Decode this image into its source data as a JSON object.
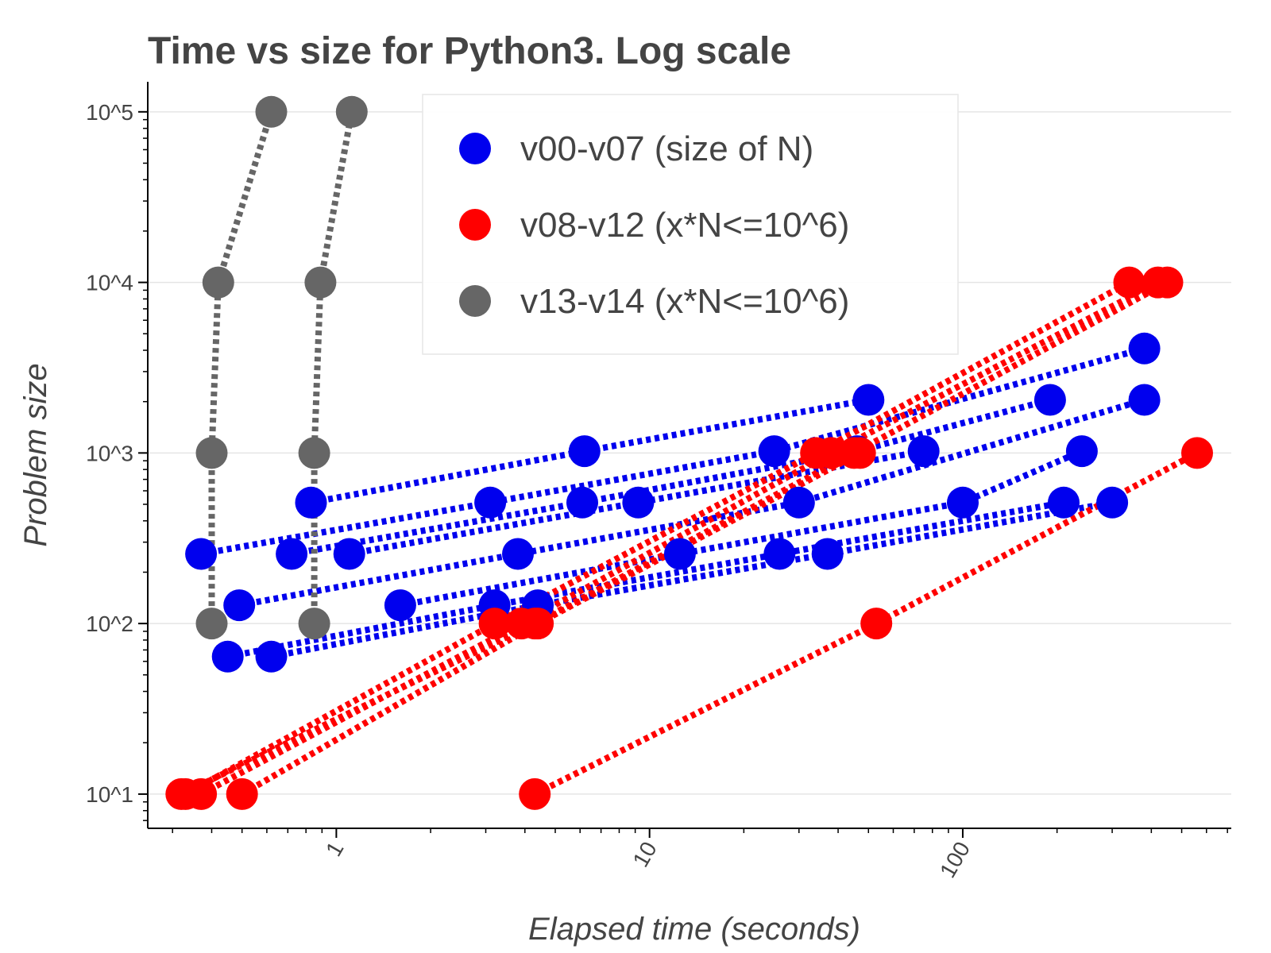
{
  "chart_data": {
    "type": "scatter",
    "title": "Time vs size for Python3. Log scale",
    "xlabel": "Elapsed time (seconds)",
    "ylabel": "Problem size",
    "x_scale": "log",
    "y_scale": "log",
    "xlim": [
      0.25,
      720
    ],
    "ylim": [
      6.3,
      150000
    ],
    "x_ticks": [
      {
        "value": 1,
        "label": "1"
      },
      {
        "value": 10,
        "label": "10"
      },
      {
        "value": 100,
        "label": "100"
      }
    ],
    "y_ticks": [
      {
        "value": 10,
        "label": "10^1"
      },
      {
        "value": 100,
        "label": "10^2"
      },
      {
        "value": 1000,
        "label": "10^3"
      },
      {
        "value": 10000,
        "label": "10^4"
      },
      {
        "value": 100000,
        "label": "10^5"
      }
    ],
    "grid": "horizontal",
    "legend_position": "top-center",
    "series": [
      {
        "name": "v00-v07 (size of N)",
        "color": "#0000ee",
        "lines": [
          [
            [
              0.37,
              256
            ],
            [
              3.1,
              512
            ],
            [
              25,
              1024
            ],
            [
              380,
              4096
            ]
          ],
          [
            [
              0.49,
              128
            ],
            [
              3.8,
              256
            ],
            [
              30,
              512
            ],
            [
              380,
              2048
            ]
          ],
          [
            [
              0.45,
              64
            ],
            [
              3.2,
              128
            ],
            [
              26,
              256
            ],
            [
              210,
              512
            ]
          ],
          [
            [
              0.62,
              64
            ],
            [
              4.4,
              128
            ],
            [
              37,
              256
            ],
            [
              300,
              512
            ]
          ],
          [
            [
              0.83,
              512
            ],
            [
              6.2,
              1024
            ],
            [
              50,
              2048
            ]
          ],
          [
            [
              0.72,
              256
            ],
            [
              6.1,
              512
            ],
            [
              46,
              1024
            ],
            [
              190,
              2048
            ]
          ],
          [
            [
              1.1,
              256
            ],
            [
              9.2,
              512
            ],
            [
              75,
              1024
            ]
          ],
          [
            [
              1.6,
              128
            ],
            [
              12.5,
              256
            ],
            [
              100,
              512
            ],
            [
              240,
              1024
            ]
          ]
        ]
      },
      {
        "name": "v08-v12 (x*N<=10^6)",
        "color": "#ff0000",
        "lines": [
          [
            [
              0.33,
              10
            ],
            [
              3.2,
              100
            ],
            [
              34,
              1000
            ],
            [
              340,
              10000
            ]
          ],
          [
            [
              0.37,
              10
            ],
            [
              3.9,
              100
            ],
            [
              38,
              1000
            ],
            [
              420,
              10000
            ]
          ],
          [
            [
              0.32,
              10
            ],
            [
              4.3,
              100
            ],
            [
              45,
              1000
            ],
            [
              450,
              10000
            ]
          ],
          [
            [
              0.5,
              10
            ],
            [
              4.4,
              100
            ],
            [
              47,
              1000
            ]
          ],
          [
            [
              4.3,
              10
            ],
            [
              53,
              100
            ],
            [
              560,
              1000
            ]
          ]
        ]
      },
      {
        "name": "v13-v14 (x*N<=10^6)",
        "color": "#666666",
        "lines": [
          [
            [
              0.4,
              100
            ],
            [
              0.4,
              1000
            ],
            [
              0.42,
              10000
            ],
            [
              0.62,
              100000
            ]
          ],
          [
            [
              0.85,
              100
            ],
            [
              0.85,
              1000
            ],
            [
              0.89,
              10000
            ],
            [
              1.12,
              100000
            ]
          ]
        ]
      }
    ]
  }
}
